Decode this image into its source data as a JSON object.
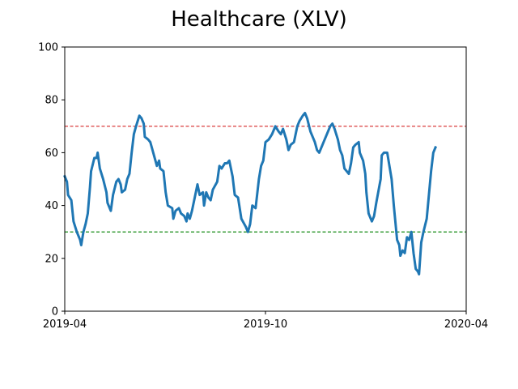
{
  "chart_data": {
    "type": "line",
    "title": "Healthcare (XLV)",
    "xlabel": "",
    "ylabel": "",
    "xlim": [
      "2019-04-01",
      "2020-04-01"
    ],
    "ylim": [
      0,
      100
    ],
    "x_ticks": [
      {
        "date": "2019-04-01",
        "label": "2019-04"
      },
      {
        "date": "2019-10-01",
        "label": "2019-10"
      },
      {
        "date": "2020-04-01",
        "label": "2020-04"
      }
    ],
    "y_ticks": [
      0,
      20,
      40,
      60,
      80,
      100
    ],
    "grid": false,
    "legend": "none",
    "series": [
      {
        "color": "#1f77b4",
        "points": [
          [
            "2019-04-01",
            51
          ],
          [
            "2019-04-03",
            49
          ],
          [
            "2019-04-04",
            44
          ],
          [
            "2019-04-07",
            42
          ],
          [
            "2019-04-09",
            34
          ],
          [
            "2019-04-12",
            30
          ],
          [
            "2019-04-15",
            27
          ],
          [
            "2019-04-16",
            25
          ],
          [
            "2019-04-18",
            30
          ],
          [
            "2019-04-20",
            33
          ],
          [
            "2019-04-22",
            37
          ],
          [
            "2019-04-24",
            47
          ],
          [
            "2019-04-25",
            53
          ],
          [
            "2019-04-28",
            58
          ],
          [
            "2019-04-30",
            58
          ],
          [
            "2019-05-01",
            60
          ],
          [
            "2019-05-03",
            54
          ],
          [
            "2019-05-06",
            50
          ],
          [
            "2019-05-09",
            45
          ],
          [
            "2019-05-10",
            41
          ],
          [
            "2019-05-13",
            38
          ],
          [
            "2019-05-15",
            44
          ],
          [
            "2019-05-18",
            49
          ],
          [
            "2019-05-20",
            50
          ],
          [
            "2019-05-22",
            48
          ],
          [
            "2019-05-23",
            45
          ],
          [
            "2019-05-26",
            46
          ],
          [
            "2019-05-28",
            50
          ],
          [
            "2019-05-30",
            52
          ],
          [
            "2019-06-01",
            60
          ],
          [
            "2019-06-03",
            67
          ],
          [
            "2019-06-05",
            70
          ],
          [
            "2019-06-08",
            74
          ],
          [
            "2019-06-10",
            73
          ],
          [
            "2019-06-12",
            71
          ],
          [
            "2019-06-13",
            66
          ],
          [
            "2019-06-16",
            65
          ],
          [
            "2019-06-18",
            64
          ],
          [
            "2019-06-20",
            61
          ],
          [
            "2019-06-22",
            58
          ],
          [
            "2019-06-24",
            55
          ],
          [
            "2019-06-26",
            57
          ],
          [
            "2019-06-27",
            54
          ],
          [
            "2019-06-30",
            53
          ],
          [
            "2019-07-02",
            45
          ],
          [
            "2019-07-04",
            40
          ],
          [
            "2019-07-08",
            39
          ],
          [
            "2019-07-09",
            35
          ],
          [
            "2019-07-11",
            38
          ],
          [
            "2019-07-14",
            39
          ],
          [
            "2019-07-16",
            37
          ],
          [
            "2019-07-19",
            36
          ],
          [
            "2019-07-21",
            34
          ],
          [
            "2019-07-22",
            37
          ],
          [
            "2019-07-24",
            35
          ],
          [
            "2019-07-26",
            38
          ],
          [
            "2019-07-29",
            44
          ],
          [
            "2019-07-31",
            48
          ],
          [
            "2019-08-02",
            44
          ],
          [
            "2019-08-05",
            45
          ],
          [
            "2019-08-06",
            40
          ],
          [
            "2019-08-08",
            45
          ],
          [
            "2019-08-10",
            43
          ],
          [
            "2019-08-12",
            42
          ],
          [
            "2019-08-14",
            46
          ],
          [
            "2019-08-18",
            49
          ],
          [
            "2019-08-20",
            55
          ],
          [
            "2019-08-22",
            54
          ],
          [
            "2019-08-25",
            56
          ],
          [
            "2019-08-27",
            56
          ],
          [
            "2019-08-29",
            57
          ],
          [
            "2019-09-01",
            51
          ],
          [
            "2019-09-03",
            44
          ],
          [
            "2019-09-06",
            43
          ],
          [
            "2019-09-09",
            35
          ],
          [
            "2019-09-13",
            32
          ],
          [
            "2019-09-15",
            30
          ],
          [
            "2019-09-17",
            33
          ],
          [
            "2019-09-19",
            40
          ],
          [
            "2019-09-22",
            39
          ],
          [
            "2019-09-25",
            50
          ],
          [
            "2019-09-27",
            55
          ],
          [
            "2019-09-29",
            57
          ],
          [
            "2019-10-01",
            64
          ],
          [
            "2019-10-04",
            65
          ],
          [
            "2019-10-07",
            67
          ],
          [
            "2019-10-10",
            70
          ],
          [
            "2019-10-13",
            68
          ],
          [
            "2019-10-15",
            67
          ],
          [
            "2019-10-17",
            69
          ],
          [
            "2019-10-20",
            65
          ],
          [
            "2019-10-22",
            61
          ],
          [
            "2019-10-24",
            63
          ],
          [
            "2019-10-27",
            64
          ],
          [
            "2019-10-30",
            70
          ],
          [
            "2019-11-01",
            72
          ],
          [
            "2019-11-04",
            74
          ],
          [
            "2019-11-06",
            75
          ],
          [
            "2019-11-08",
            73
          ],
          [
            "2019-11-11",
            68
          ],
          [
            "2019-11-13",
            66
          ],
          [
            "2019-11-15",
            64
          ],
          [
            "2019-11-17",
            61
          ],
          [
            "2019-11-19",
            60
          ],
          [
            "2019-11-23",
            64
          ],
          [
            "2019-11-26",
            67
          ],
          [
            "2019-11-29",
            70
          ],
          [
            "2019-12-01",
            71
          ],
          [
            "2019-12-03",
            69
          ],
          [
            "2019-12-06",
            65
          ],
          [
            "2019-12-08",
            61
          ],
          [
            "2019-12-10",
            59
          ],
          [
            "2019-12-12",
            54
          ],
          [
            "2019-12-14",
            53
          ],
          [
            "2019-12-16",
            52
          ],
          [
            "2019-12-18",
            56
          ],
          [
            "2019-12-20",
            62
          ],
          [
            "2019-12-22",
            63
          ],
          [
            "2019-12-25",
            64
          ],
          [
            "2019-12-26",
            60
          ],
          [
            "2019-12-29",
            57
          ],
          [
            "2019-12-31",
            52
          ],
          [
            "2020-01-01",
            45
          ],
          [
            "2020-01-03",
            37
          ],
          [
            "2020-01-06",
            34
          ],
          [
            "2020-01-08",
            36
          ],
          [
            "2020-01-10",
            41
          ],
          [
            "2020-01-14",
            50
          ],
          [
            "2020-01-15",
            59
          ],
          [
            "2020-01-17",
            60
          ],
          [
            "2020-01-20",
            60
          ],
          [
            "2020-01-22",
            55
          ],
          [
            "2020-01-24",
            50
          ],
          [
            "2020-01-26",
            40
          ],
          [
            "2020-01-29",
            27
          ],
          [
            "2020-01-31",
            25
          ],
          [
            "2020-02-01",
            21
          ],
          [
            "2020-02-03",
            23
          ],
          [
            "2020-02-05",
            22
          ],
          [
            "2020-02-07",
            28
          ],
          [
            "2020-02-09",
            27
          ],
          [
            "2020-02-11",
            30
          ],
          [
            "2020-02-13",
            22
          ],
          [
            "2020-02-15",
            16
          ],
          [
            "2020-02-17",
            15
          ],
          [
            "2020-02-18",
            14
          ],
          [
            "2020-02-20",
            26
          ],
          [
            "2020-02-22",
            30
          ],
          [
            "2020-02-25",
            35
          ],
          [
            "2020-02-27",
            44
          ],
          [
            "2020-02-29",
            53
          ],
          [
            "2020-03-02",
            60
          ],
          [
            "2020-03-04",
            62
          ]
        ]
      }
    ],
    "reference_lines": [
      {
        "y": 70,
        "color": "#d62728",
        "style": "dashed"
      },
      {
        "y": 30,
        "color": "#008000",
        "style": "dashed"
      }
    ]
  }
}
